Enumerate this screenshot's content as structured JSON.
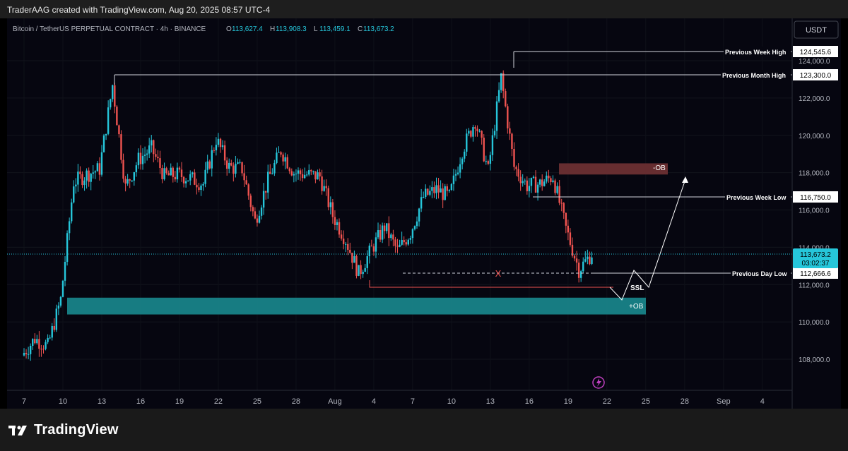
{
  "header": {
    "attribution": "TraderAAG created with TradingView.com, Aug 20, 2025 08:57 UTC-4"
  },
  "symbol": {
    "name": "Bitcoin / TetherUS PERPETUAL CONTRACT · 4h · BINANCE",
    "ohlc": [
      {
        "k": "O",
        "v": "113,627.4"
      },
      {
        "k": "H",
        "v": "113,908.3"
      },
      {
        "k": "L",
        "v": "113,459.1"
      },
      {
        "k": "C",
        "v": "113,673.2"
      }
    ]
  },
  "currency_button": "USDT",
  "colors": {
    "up": "#26c6da",
    "down": "#ef5350",
    "ob_bull": "#1a8a8f",
    "ob_bear": "#6b2f33",
    "price_tag": "#26c6da"
  },
  "price_label": {
    "price": "113,673.2",
    "countdown": "03:02:37"
  },
  "levels": [
    {
      "label": "Previous Week High",
      "tag": "124,545.6"
    },
    {
      "label": "Previous Month High",
      "tag": "123,300.0"
    },
    {
      "label": "Previous Week Low",
      "tag": "116,750.0"
    },
    {
      "label": "Previous Day Low",
      "tag": "112,666.6"
    }
  ],
  "annotations": {
    "ob_bear": "-OB",
    "ob_bull": "+OB",
    "ssl": "SSL",
    "mark": "X"
  },
  "footer": {
    "brand": "TradingView"
  },
  "chart_data": {
    "type": "candlestick",
    "timeframe": "4h",
    "y_axis": {
      "min": 106500,
      "max": 125800,
      "tick_labels": [
        "124,000.0",
        "122,000.0",
        "120,000.0",
        "118,000.0",
        "116,000.0",
        "114,000.0",
        "112,000.0",
        "110,000.0",
        "108,000.0"
      ]
    },
    "x_axis": {
      "tick_labels": [
        "7",
        "10",
        "13",
        "16",
        "19",
        "22",
        "25",
        "28",
        "Aug",
        "4",
        "7",
        "10",
        "13",
        "16",
        "19",
        "22",
        "25",
        "28",
        "Sep",
        "4"
      ]
    },
    "close_path": [
      [
        "Jul 7",
        108200
      ],
      [
        "Jul 8",
        109100
      ],
      [
        "Jul 9",
        108700
      ],
      [
        "Jul 10",
        111200
      ],
      [
        "Jul 11",
        117500
      ],
      [
        "Jul 12",
        117900
      ],
      [
        "Jul 13",
        118200
      ],
      [
        "Jul 14",
        122700
      ],
      [
        "Jul 15",
        117200
      ],
      [
        "Jul 16",
        118700
      ],
      [
        "Jul 17",
        119300
      ],
      [
        "Jul 18",
        117800
      ],
      [
        "Jul 19",
        117900
      ],
      [
        "Jul 20",
        117700
      ],
      [
        "Jul 21",
        117400
      ],
      [
        "Jul 22",
        119800
      ],
      [
        "Jul 23",
        118300
      ],
      [
        "Jul 24",
        118200
      ],
      [
        "Jul 25",
        115400
      ],
      [
        "Jul 26",
        117600
      ],
      [
        "Jul 27",
        119200
      ],
      [
        "Jul 28",
        118000
      ],
      [
        "Jul 29",
        117900
      ],
      [
        "Jul 30",
        117800
      ],
      [
        "Jul 31",
        115700
      ],
      [
        "Aug 1",
        114400
      ],
      [
        "Aug 2",
        112600
      ],
      [
        "Aug 3",
        113900
      ],
      [
        "Aug 4",
        115100
      ],
      [
        "Aug 5",
        113800
      ],
      [
        "Aug 6",
        114800
      ],
      [
        "Aug 7",
        116700
      ],
      [
        "Aug 8",
        117100
      ],
      [
        "Aug 9",
        116700
      ],
      [
        "Aug 10",
        119200
      ],
      [
        "Aug 11",
        120800
      ],
      [
        "Aug 12",
        118100
      ],
      [
        "Aug 13",
        123100
      ],
      [
        "Aug 14",
        118300
      ],
      [
        "Aug 15",
        117300
      ],
      [
        "Aug 16",
        117400
      ],
      [
        "Aug 17",
        117800
      ],
      [
        "Aug 18",
        115000
      ],
      [
        "Aug 19",
        112800
      ],
      [
        "Aug 20",
        113673
      ]
    ],
    "order_blocks": [
      {
        "type": "bearish",
        "label": "-OB",
        "price_low": 117900,
        "price_high": 118500
      },
      {
        "type": "bullish",
        "label": "+OB",
        "price_low": 110400,
        "price_high": 111300
      }
    ],
    "last_price": 113673.2
  }
}
